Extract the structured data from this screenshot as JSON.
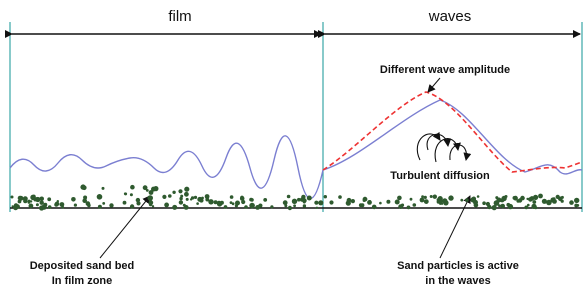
{
  "zones": [
    {
      "label": "film"
    },
    {
      "label": "waves"
    }
  ],
  "annotations": [
    {
      "lines": [
        "Different wave amplitude"
      ]
    },
    {
      "lines": [
        "Turbulent diffusion"
      ]
    },
    {
      "lines": [
        "Deposited sand bed",
        "In film zone"
      ]
    },
    {
      "lines": [
        "Sand particles is active",
        "in the waves"
      ]
    }
  ]
}
